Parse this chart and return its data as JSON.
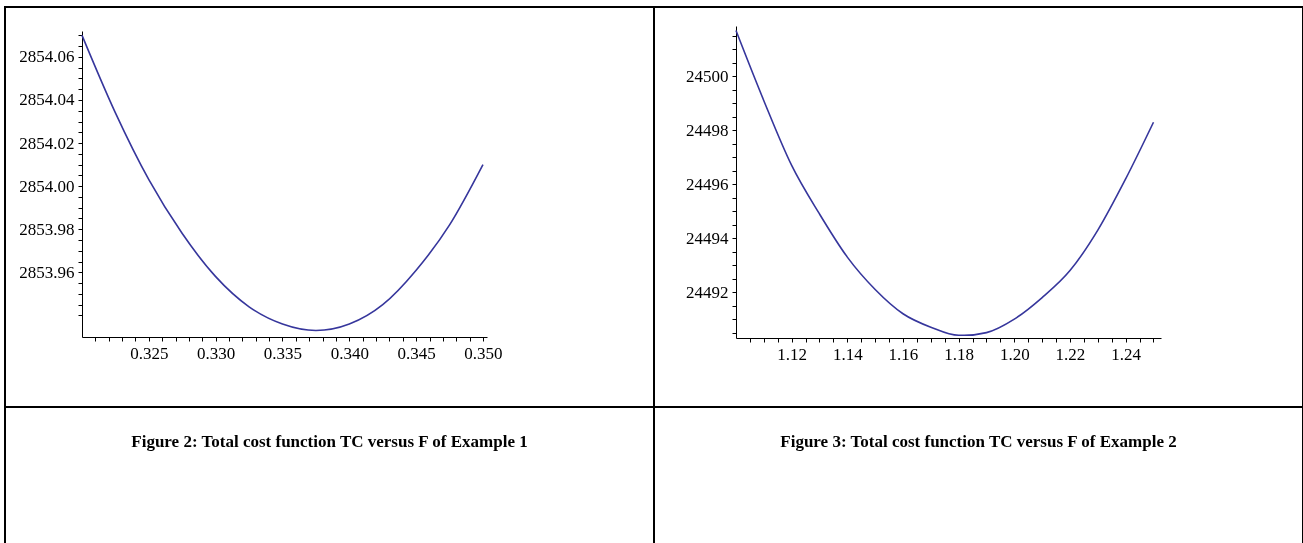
{
  "chart_data": [
    {
      "type": "line",
      "title": "Figure 2: Total cost function TC versus F of Example 1",
      "x": [
        0.32,
        0.3225,
        0.325,
        0.3275,
        0.33,
        0.3325,
        0.335,
        0.3375,
        0.34,
        0.3425,
        0.345,
        0.3475,
        0.35
      ],
      "series": [
        {
          "color": "#36369c",
          "values": [
            2854.07,
            2854.034,
            2854.003,
            2853.978,
            2853.958,
            2853.944,
            2853.936,
            2853.933,
            2853.936,
            2853.945,
            2853.961,
            2853.982,
            2854.01
          ]
        }
      ],
      "xlim": [
        0.32,
        0.3503
      ],
      "xticks": [
        {
          "value": 0.321,
          "label": null
        },
        {
          "value": 0.322,
          "label": null
        },
        {
          "value": 0.323,
          "label": null
        },
        {
          "value": 0.324,
          "label": null
        },
        0.325,
        {
          "value": 0.326,
          "label": null
        },
        {
          "value": 0.327,
          "label": null
        },
        {
          "value": 0.328,
          "label": null
        },
        {
          "value": 0.329,
          "label": null
        },
        {
          "value": 0.33,
          "label": "0.330"
        },
        {
          "value": 0.331,
          "label": null
        },
        {
          "value": 0.332,
          "label": null
        },
        {
          "value": 0.333,
          "label": null
        },
        {
          "value": 0.334,
          "label": null
        },
        0.335,
        {
          "value": 0.336,
          "label": null
        },
        {
          "value": 0.337,
          "label": null
        },
        {
          "value": 0.338,
          "label": null
        },
        {
          "value": 0.339,
          "label": null
        },
        {
          "value": 0.34,
          "label": "0.340"
        },
        {
          "value": 0.341,
          "label": null
        },
        {
          "value": 0.342,
          "label": null
        },
        {
          "value": 0.343,
          "label": null
        },
        {
          "value": 0.344,
          "label": null
        },
        0.345,
        {
          "value": 0.346,
          "label": null
        },
        {
          "value": 0.347,
          "label": null
        },
        {
          "value": 0.348,
          "label": null
        },
        {
          "value": 0.349,
          "label": null
        },
        {
          "value": 0.35,
          "label": "0.350"
        }
      ],
      "ylim": [
        2853.93,
        2854.072
      ],
      "yticks": [
        {
          "value": 2853.94,
          "label": null
        },
        {
          "value": 2853.945,
          "label": null
        },
        {
          "value": 2853.95,
          "label": null
        },
        {
          "value": 2853.955,
          "label": null
        },
        2853.96,
        {
          "value": 2853.965,
          "label": null
        },
        {
          "value": 2853.97,
          "label": null
        },
        {
          "value": 2853.975,
          "label": null
        },
        2853.98,
        {
          "value": 2853.985,
          "label": null
        },
        {
          "value": 2853.99,
          "label": null
        },
        {
          "value": 2853.995,
          "label": null
        },
        {
          "value": 2854.0,
          "label": "2854.00"
        },
        {
          "value": 2854.005,
          "label": null
        },
        {
          "value": 2854.01,
          "label": null
        },
        {
          "value": 2854.015,
          "label": null
        },
        2854.02,
        {
          "value": 2854.025,
          "label": null
        },
        {
          "value": 2854.03,
          "label": null
        },
        {
          "value": 2854.035,
          "label": null
        },
        2854.04,
        {
          "value": 2854.045,
          "label": null
        },
        {
          "value": 2854.05,
          "label": null
        },
        {
          "value": 2854.055,
          "label": null
        },
        2854.06,
        {
          "value": 2854.065,
          "label": null
        },
        {
          "value": 2854.07,
          "label": null
        }
      ]
    },
    {
      "type": "line",
      "title": "Figure 3: Total cost function TC versus F of Example 2",
      "x": [
        1.1,
        1.11,
        1.12,
        1.13,
        1.14,
        1.15,
        1.16,
        1.17,
        1.18,
        1.182,
        1.19,
        1.2,
        1.21,
        1.22,
        1.23,
        1.24,
        1.25
      ],
      "series": [
        {
          "color": "#36369c",
          "values": [
            24501.7,
            24499.1,
            24496.7,
            24494.9,
            24493.3,
            24492.1,
            24491.2,
            24490.7,
            24490.4,
            24490.4,
            24490.5,
            24491.0,
            24491.8,
            24492.8,
            24494.3,
            24496.2,
            24498.3
          ]
        }
      ],
      "xlim": [
        1.1,
        1.2527
      ],
      "xticks": [
        {
          "value": 1.105,
          "label": null
        },
        {
          "value": 1.11,
          "label": null
        },
        {
          "value": 1.115,
          "label": null
        },
        1.12,
        {
          "value": 1.125,
          "label": null
        },
        {
          "value": 1.13,
          "label": null
        },
        {
          "value": 1.135,
          "label": null
        },
        1.14,
        {
          "value": 1.145,
          "label": null
        },
        {
          "value": 1.15,
          "label": null
        },
        {
          "value": 1.155,
          "label": null
        },
        1.16,
        {
          "value": 1.165,
          "label": null
        },
        {
          "value": 1.17,
          "label": null
        },
        {
          "value": 1.175,
          "label": null
        },
        1.18,
        {
          "value": 1.185,
          "label": null
        },
        {
          "value": 1.19,
          "label": null
        },
        {
          "value": 1.195,
          "label": null
        },
        {
          "value": 1.2,
          "label": "1.20"
        },
        {
          "value": 1.205,
          "label": null
        },
        {
          "value": 1.21,
          "label": null
        },
        {
          "value": 1.215,
          "label": null
        },
        1.22,
        {
          "value": 1.225,
          "label": null
        },
        {
          "value": 1.23,
          "label": null
        },
        {
          "value": 1.235,
          "label": null
        },
        1.24,
        {
          "value": 1.245,
          "label": null
        },
        {
          "value": 1.25,
          "label": null
        }
      ],
      "ylim": [
        24490.3,
        24501.87
      ],
      "yticks": [
        {
          "value": 24490.5,
          "label": null
        },
        {
          "value": 24491,
          "label": null
        },
        {
          "value": 24491.5,
          "label": null
        },
        24492,
        {
          "value": 24492.5,
          "label": null
        },
        {
          "value": 24493,
          "label": null
        },
        {
          "value": 24493.5,
          "label": null
        },
        24494,
        {
          "value": 24494.5,
          "label": null
        },
        {
          "value": 24495,
          "label": null
        },
        {
          "value": 24495.5,
          "label": null
        },
        24496,
        {
          "value": 24496.5,
          "label": null
        },
        {
          "value": 24497,
          "label": null
        },
        {
          "value": 24497.5,
          "label": null
        },
        24498,
        {
          "value": 24498.5,
          "label": null
        },
        {
          "value": 24499,
          "label": null
        },
        {
          "value": 24499.5,
          "label": null
        },
        24500,
        {
          "value": 24500.5,
          "label": null
        },
        {
          "value": 24501,
          "label": null
        },
        {
          "value": 24501.5,
          "label": null
        }
      ]
    }
  ]
}
